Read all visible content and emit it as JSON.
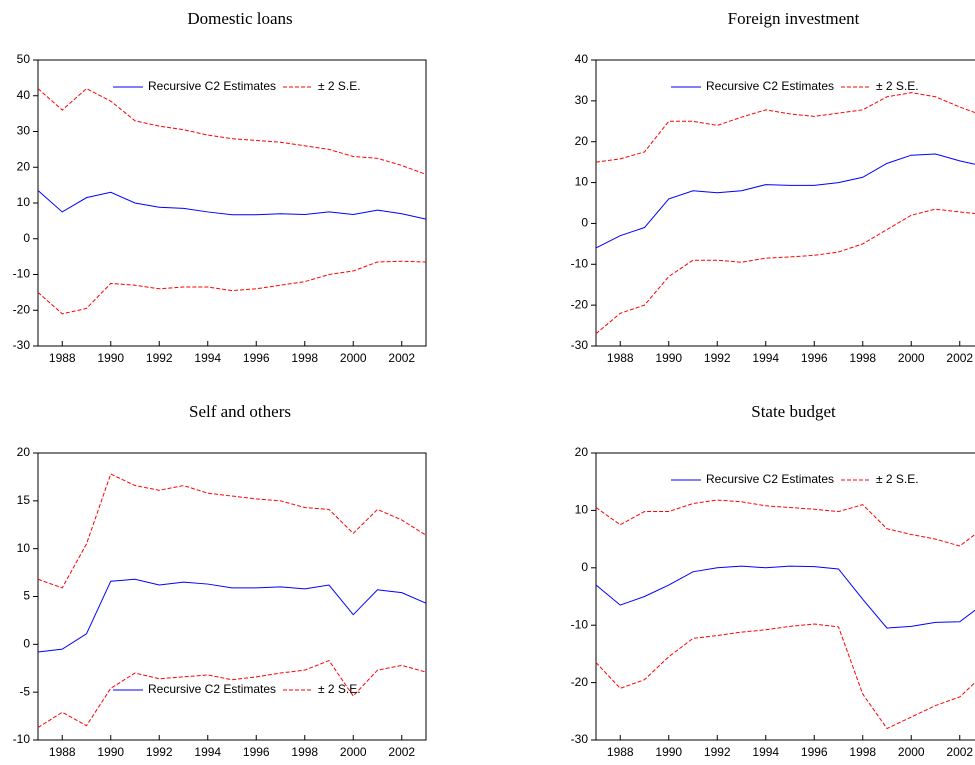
{
  "chart_data": [
    {
      "type": "line",
      "title": "Domestic loans",
      "x": [
        1987,
        1988,
        1989,
        1990,
        1991,
        1992,
        1993,
        1994,
        1995,
        1996,
        1997,
        1998,
        1999,
        2000,
        2001,
        2002,
        2003
      ],
      "xlim": [
        1987,
        2003
      ],
      "xticks": [
        1988,
        1990,
        1992,
        1994,
        1996,
        1998,
        2000,
        2002
      ],
      "ylim": [
        -30,
        50
      ],
      "yticks": [
        -30,
        -20,
        -10,
        0,
        10,
        20,
        30,
        40,
        50
      ],
      "legend": "upper",
      "series": [
        {
          "name": "Recursive C2 Estimates",
          "color": "#0000ff",
          "values": [
            13.5,
            7.5,
            11.5,
            13,
            10,
            8.8,
            8.5,
            7.5,
            6.7,
            6.7,
            7,
            6.8,
            7.5,
            6.8,
            8,
            7,
            5.5
          ]
        },
        {
          "name": "± 2 S.E.",
          "color": "#ff0000",
          "values": [
            42,
            36,
            42,
            38.5,
            33,
            31.5,
            30.5,
            29,
            28,
            27.5,
            27,
            26,
            25,
            23,
            22.5,
            20.5,
            18
          ]
        },
        {
          "name": "± 2 S.E.",
          "color": "#ff0000",
          "values": [
            -15,
            -21,
            -19.5,
            -12.5,
            -13,
            -14,
            -13.5,
            -13.5,
            -14.5,
            -14,
            -13,
            -12,
            -10,
            -9,
            -6.5,
            -6.3,
            -6.5
          ]
        }
      ]
    },
    {
      "type": "line",
      "title": "Foreign investment",
      "x": [
        1987,
        1988,
        1989,
        1990,
        1991,
        1992,
        1993,
        1994,
        1995,
        1996,
        1997,
        1998,
        1999,
        2000,
        2001,
        2002,
        2003
      ],
      "xlim": [
        1987,
        2003
      ],
      "xticks": [
        1988,
        1990,
        1992,
        1994,
        1996,
        1998,
        2000,
        2002
      ],
      "ylim": [
        -30,
        40
      ],
      "yticks": [
        -30,
        -20,
        -10,
        0,
        10,
        20,
        30,
        40
      ],
      "legend": "upper",
      "series": [
        {
          "name": "Recursive C2 Estimates",
          "color": "#0000ff",
          "values": [
            -6,
            -3,
            -1,
            6,
            8,
            7.5,
            8,
            9.5,
            9.3,
            9.3,
            10,
            11.3,
            14.7,
            16.7,
            17,
            15.3,
            14
          ]
        },
        {
          "name": "± 2 S.E.",
          "color": "#ff0000",
          "values": [
            15,
            15.8,
            17.5,
            25,
            25,
            24,
            26,
            27.8,
            26.8,
            26.2,
            27,
            27.8,
            31,
            32,
            31,
            28.5,
            26.3
          ]
        },
        {
          "name": "± 2 S.E.",
          "color": "#ff0000",
          "values": [
            -27,
            -22,
            -20,
            -13,
            -9,
            -9,
            -9.5,
            -8.5,
            -8.2,
            -7.8,
            -7,
            -5,
            -1.5,
            2,
            3.5,
            2.8,
            2.2
          ]
        }
      ]
    },
    {
      "type": "line",
      "title": "Self and others",
      "x": [
        1987,
        1988,
        1989,
        1990,
        1991,
        1992,
        1993,
        1994,
        1995,
        1996,
        1997,
        1998,
        1999,
        2000,
        2001,
        2002,
        2003
      ],
      "xlim": [
        1987,
        2003
      ],
      "xticks": [
        1988,
        1990,
        1992,
        1994,
        1996,
        1998,
        2000,
        2002
      ],
      "ylim": [
        -10,
        20
      ],
      "yticks": [
        -10,
        -5,
        0,
        5,
        10,
        15,
        20
      ],
      "legend": "lower",
      "series": [
        {
          "name": "Recursive C2 Estimates",
          "color": "#0000ff",
          "values": [
            -0.8,
            -0.5,
            1.1,
            6.6,
            6.8,
            6.2,
            6.5,
            6.3,
            5.9,
            5.9,
            6,
            5.8,
            6.2,
            3.1,
            5.7,
            5.4,
            4.3
          ]
        },
        {
          "name": "± 2 S.E.",
          "color": "#ff0000",
          "values": [
            6.8,
            5.9,
            10.5,
            17.8,
            16.6,
            16.1,
            16.6,
            15.8,
            15.5,
            15.2,
            15,
            14.3,
            14.1,
            11.6,
            14.1,
            13,
            11.4
          ]
        },
        {
          "name": "± 2 S.E.",
          "color": "#ff0000",
          "values": [
            -8.7,
            -7.1,
            -8.5,
            -4.6,
            -3,
            -3.6,
            -3.4,
            -3.2,
            -3.7,
            -3.4,
            -3,
            -2.7,
            -1.7,
            -5.4,
            -2.7,
            -2.2,
            -2.9
          ]
        }
      ]
    },
    {
      "type": "line",
      "title": "State budget",
      "x": [
        1987,
        1988,
        1989,
        1990,
        1991,
        1992,
        1993,
        1994,
        1995,
        1996,
        1997,
        1998,
        1999,
        2000,
        2001,
        2002,
        2003
      ],
      "xlim": [
        1987,
        2003
      ],
      "xticks": [
        1988,
        1990,
        1992,
        1994,
        1996,
        1998,
        2000,
        2002
      ],
      "ylim": [
        -30,
        20
      ],
      "yticks": [
        -30,
        -20,
        -10,
        0,
        10,
        20
      ],
      "legend": "upper",
      "series": [
        {
          "name": "Recursive C2 Estimates",
          "color": "#0000ff",
          "values": [
            -3,
            -6.5,
            -5,
            -3,
            -0.7,
            0,
            0.3,
            0,
            0.3,
            0.2,
            -0.2,
            -5.5,
            -10.5,
            -10.2,
            -9.5,
            -9.4,
            -6.2
          ]
        },
        {
          "name": "± 2 S.E.",
          "color": "#ff0000",
          "values": [
            10.5,
            7.5,
            9.8,
            9.8,
            11.2,
            11.8,
            11.5,
            10.8,
            10.5,
            10.2,
            9.8,
            11,
            6.8,
            5.8,
            5,
            3.8,
            7
          ]
        },
        {
          "name": "± 2 S.E.",
          "color": "#ff0000",
          "values": [
            -16.5,
            -21,
            -19.5,
            -15.5,
            -12.3,
            -11.8,
            -11.2,
            -10.8,
            -10.2,
            -9.8,
            -10.3,
            -22,
            -28,
            -26,
            -24,
            -22.5,
            -18.5
          ]
        }
      ]
    }
  ]
}
